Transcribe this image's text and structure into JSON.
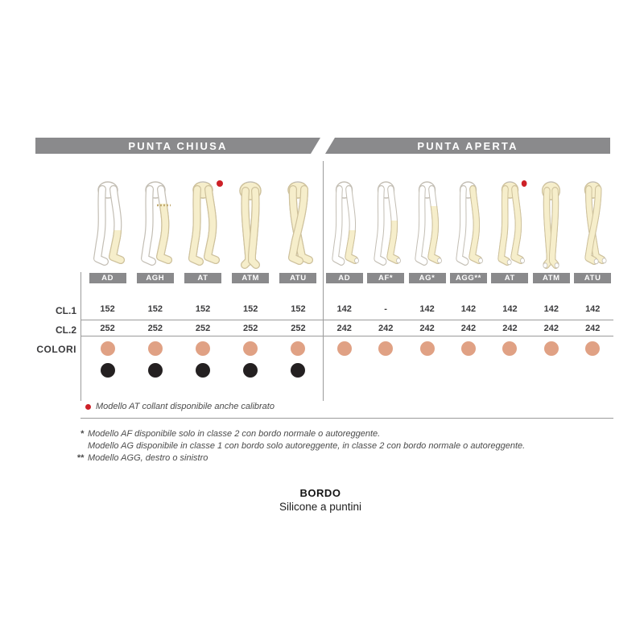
{
  "header": {
    "closed": "PUNTA CHIUSA",
    "open": "PUNTA APERTA"
  },
  "row_labels": {
    "cl1": "CL.1",
    "cl2": "CL.2",
    "colori": "COLORI"
  },
  "colors": {
    "bar_gray": "#8a8a8c",
    "skin_dot": "#e0a184",
    "black_dot": "#242021",
    "red": "#cd2027",
    "stocking_beige": "#f6eecb",
    "stocking_outline": "#cfc29c",
    "leg_outline": "#c3beb4"
  },
  "sections": [
    {
      "name": "punta-chiusa",
      "columns": [
        {
          "model": "AD",
          "cl1": "152",
          "cl2": "252",
          "dots": [
            "skin",
            "black"
          ],
          "leg_icon": "leg-knee-high-closed",
          "leg": {
            "pose": "side",
            "cover": 0.56,
            "legs": "front",
            "open_toe": false,
            "band": false,
            "red_dot": false
          }
        },
        {
          "model": "AGH",
          "cl1": "152",
          "cl2": "252",
          "dots": [
            "skin",
            "black"
          ],
          "leg_icon": "leg-thigh-high-band-closed",
          "leg": {
            "pose": "side",
            "cover": 0.28,
            "legs": "front",
            "open_toe": false,
            "band": true,
            "red_dot": false
          }
        },
        {
          "model": "AT",
          "cl1": "152",
          "cl2": "252",
          "dots": [
            "skin",
            "black"
          ],
          "leg_icon": "leg-tights-closed",
          "leg": {
            "pose": "side",
            "cover": 0.05,
            "legs": "both",
            "open_toe": false,
            "band": false,
            "red_dot": true
          }
        },
        {
          "model": "ATM",
          "cl1": "152",
          "cl2": "252",
          "dots": [
            "skin",
            "black"
          ],
          "leg_icon": "leg-maternity-tights-closed",
          "leg": {
            "pose": "front",
            "cover": 0.05,
            "legs": "both",
            "open_toe": false,
            "band": false,
            "red_dot": false
          }
        },
        {
          "model": "ATU",
          "cl1": "152",
          "cl2": "252",
          "dots": [
            "skin",
            "black"
          ],
          "leg_icon": "leg-tights-back-closed",
          "leg": {
            "pose": "cross",
            "cover": 0.05,
            "legs": "both",
            "open_toe": false,
            "band": false,
            "red_dot": false
          }
        }
      ]
    },
    {
      "name": "punta-aperta",
      "columns": [
        {
          "model": "AD",
          "cl1": "142",
          "cl2": "242",
          "dots": [
            "skin"
          ],
          "leg_icon": "leg-knee-high-open",
          "leg": {
            "pose": "side",
            "cover": 0.56,
            "legs": "front",
            "open_toe": true,
            "band": false,
            "red_dot": false
          }
        },
        {
          "model": "AF*",
          "cl1": "-",
          "cl2": "242",
          "dots": [
            "skin"
          ],
          "leg_icon": "leg-above-knee-open",
          "leg": {
            "pose": "side",
            "cover": 0.46,
            "legs": "front",
            "open_toe": true,
            "band": false,
            "red_dot": false
          }
        },
        {
          "model": "AG*",
          "cl1": "142",
          "cl2": "242",
          "dots": [
            "skin"
          ],
          "leg_icon": "leg-thigh-high-open",
          "leg": {
            "pose": "side",
            "cover": 0.3,
            "legs": "front",
            "open_toe": true,
            "band": false,
            "red_dot": false
          }
        },
        {
          "model": "AGG**",
          "cl1": "142",
          "cl2": "242",
          "dots": [
            "skin"
          ],
          "leg_icon": "leg-monocollant-open",
          "leg": {
            "pose": "side",
            "cover": 0.06,
            "legs": "front",
            "open_toe": true,
            "band": false,
            "red_dot": false
          }
        },
        {
          "model": "AT",
          "cl1": "142",
          "cl2": "242",
          "dots": [
            "skin"
          ],
          "leg_icon": "leg-tights-open",
          "leg": {
            "pose": "side",
            "cover": 0.05,
            "legs": "both",
            "open_toe": true,
            "band": false,
            "red_dot": true
          }
        },
        {
          "model": "ATM",
          "cl1": "142",
          "cl2": "242",
          "dots": [
            "skin"
          ],
          "leg_icon": "leg-maternity-tights-open",
          "leg": {
            "pose": "front",
            "cover": 0.05,
            "legs": "both",
            "open_toe": true,
            "band": false,
            "red_dot": false
          }
        },
        {
          "model": "ATU",
          "cl1": "142",
          "cl2": "242",
          "dots": [
            "skin"
          ],
          "leg_icon": "leg-tights-back-open",
          "leg": {
            "pose": "cross",
            "cover": 0.05,
            "legs": "both",
            "open_toe": true,
            "band": false,
            "red_dot": false
          }
        }
      ]
    }
  ],
  "legend": {
    "text": "Modello AT collant disponibile anche calibrato"
  },
  "footnotes": [
    {
      "marker": "*",
      "text": "Modello AF disponibile solo in classe 2 con bordo normale o autoreggente."
    },
    {
      "marker": "",
      "text": "Modello AG disponibile in classe 1 con bordo solo autoreggente, in classe 2 con bordo normale o autoreggente."
    },
    {
      "marker": "**",
      "text": "Modello AGG, destro o sinistro"
    }
  ],
  "bottom": {
    "title": "BORDO",
    "subtitle": "Silicone a puntini"
  }
}
